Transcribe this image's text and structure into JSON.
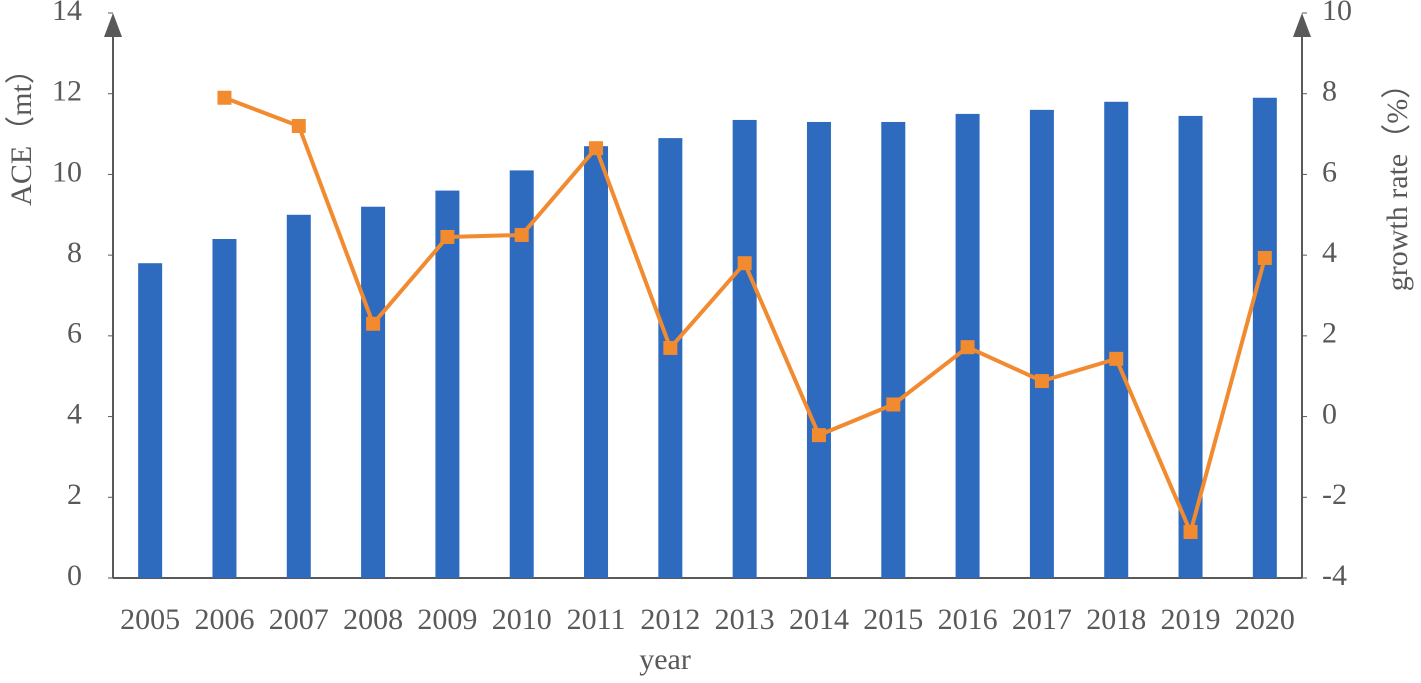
{
  "chart_data": {
    "type": "bar_line",
    "x_label": "year",
    "y_label": "ACE（mt）",
    "y2_label": "growth rate（%）",
    "categories": [
      "2005",
      "2006",
      "2007",
      "2008",
      "2009",
      "2010",
      "2011",
      "2012",
      "2013",
      "2014",
      "2015",
      "2016",
      "2017",
      "2018",
      "2019",
      "2020"
    ],
    "series": [
      {
        "type": "bar",
        "color": "#2e6bbf",
        "values": [
          7.8,
          8.4,
          9.0,
          9.2,
          9.6,
          10.1,
          10.7,
          10.9,
          11.35,
          11.3,
          11.3,
          11.5,
          11.6,
          11.8,
          11.45,
          11.9
        ]
      },
      {
        "type": "line",
        "axis": "y2",
        "color": "#f28a30",
        "values": [
          null,
          7.9,
          7.2,
          2.3,
          4.45,
          4.5,
          6.65,
          1.7,
          3.8,
          -0.46,
          0.3,
          1.72,
          0.88,
          1.43,
          -2.86,
          3.93
        ]
      }
    ],
    "ylim": [
      0,
      14
    ],
    "yticks": [
      0,
      2,
      4,
      6,
      8,
      10,
      12,
      14
    ],
    "y2lim": [
      -4,
      10
    ],
    "y2ticks": [
      -4,
      -2,
      0,
      2,
      4,
      6,
      8,
      10
    ]
  }
}
